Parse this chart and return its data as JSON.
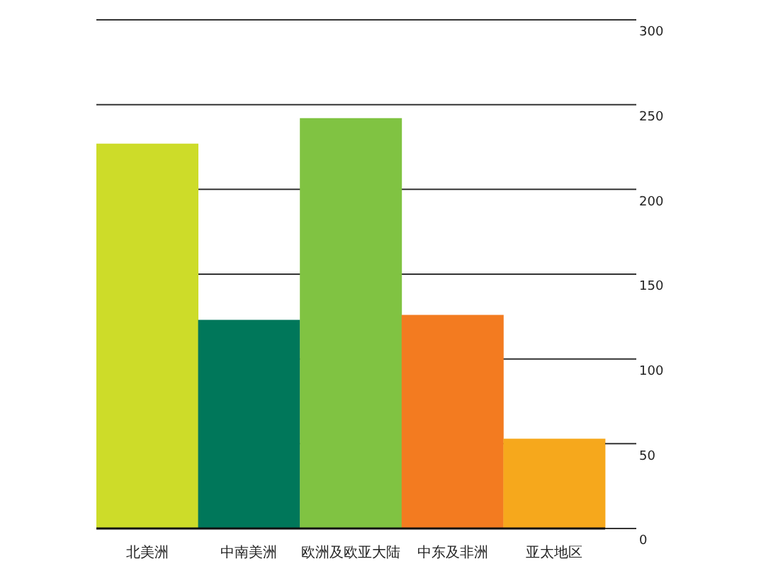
{
  "chart_data": {
    "type": "bar",
    "categories": [
      "北美洲",
      "中南美洲",
      "欧洲及欧亚大陆",
      "中东及非洲",
      "亚太地区"
    ],
    "values": [
      227,
      123,
      242,
      126,
      53
    ],
    "colors": [
      "#cddc29",
      "#00775a",
      "#80c342",
      "#f37b20",
      "#f6a81c"
    ],
    "ylim": [
      0,
      300
    ],
    "yticks": [
      0,
      50,
      100,
      150,
      200,
      250,
      300
    ],
    "grid": "y"
  }
}
